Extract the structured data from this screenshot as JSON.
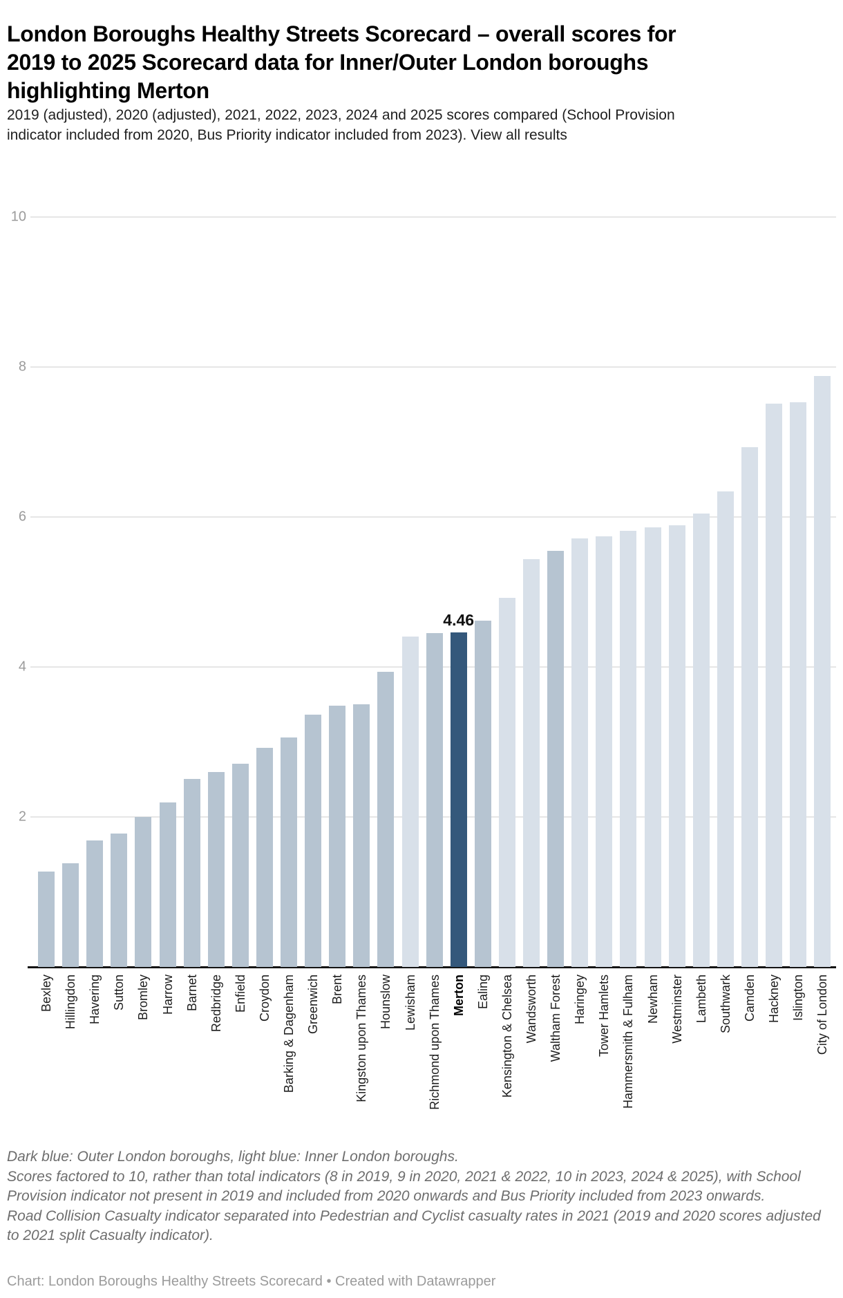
{
  "header": {
    "title": "London Boroughs Healthy Streets Scorecard – overall scores for 2019 to 2025 Scorecard data for Inner/Outer London boroughs highlighting Merton",
    "subtitle_text": "2019 (adjusted), 2020 (adjusted), 2021, 2022, 2023, 2024 and 2025 scores compared (School Provision indicator included from 2020, Bus Priority indicator included from 2023). ",
    "subtitle_link": "View all results"
  },
  "chart_data": {
    "type": "bar",
    "title": "London Boroughs Healthy Streets Scorecard – overall scores for 2019 to 2025 Scorecard data for Inner/Outer London boroughs highlighting Merton",
    "categories": [
      "Bexley",
      "Hillingdon",
      "Havering",
      "Sutton",
      "Bromley",
      "Harrow",
      "Barnet",
      "Redbridge",
      "Enfield",
      "Croydon",
      "Barking & Dagenham",
      "Greenwich",
      "Brent",
      "Kingston upon Thames",
      "Hounslow",
      "Lewisham",
      "Richmond upon Thames",
      "Merton",
      "Ealing",
      "Kensington & Chelsea",
      "Wandsworth",
      "Waltham Forest",
      "Haringey",
      "Tower Hamlets",
      "Hammersmith & Fulham",
      "Newham",
      "Westminster",
      "Lambeth",
      "Southwark",
      "Camden",
      "Hackney",
      "Islington",
      "City of London"
    ],
    "values": [
      1.27,
      1.38,
      1.69,
      1.78,
      2.0,
      2.19,
      2.51,
      2.6,
      2.71,
      2.92,
      3.06,
      3.36,
      3.48,
      3.5,
      3.94,
      4.41,
      4.45,
      4.46,
      4.62,
      4.92,
      5.44,
      5.55,
      5.71,
      5.74,
      5.82,
      5.86,
      5.89,
      6.05,
      6.34,
      6.93,
      7.51,
      7.53,
      7.88
    ],
    "groups": [
      "outer",
      "outer",
      "outer",
      "outer",
      "outer",
      "outer",
      "outer",
      "outer",
      "outer",
      "outer",
      "outer",
      "outer",
      "outer",
      "outer",
      "outer",
      "inner",
      "outer",
      "outer",
      "outer",
      "inner",
      "inner",
      "outer",
      "inner",
      "inner",
      "inner",
      "inner",
      "inner",
      "inner",
      "inner",
      "inner",
      "inner",
      "inner",
      "inner"
    ],
    "highlight": {
      "category": "Merton",
      "index": 17,
      "value_label": "4.46"
    },
    "xlabel": "",
    "ylabel": "",
    "ylim": [
      0,
      10
    ],
    "y_ticks": [
      10,
      8,
      6,
      4,
      2
    ],
    "grid": true,
    "legend_position": "none",
    "colors": {
      "outer": "#b6c4d1",
      "inner": "#d8e0e9",
      "highlight": "#34587b",
      "gridline": "#e6e6e6",
      "axis_line": "#141414",
      "tick_label": "#9b9b9b"
    }
  },
  "footnotes": [
    "Dark blue: Outer London boroughs, light blue: Inner London boroughs.",
    "Scores factored to 10, rather than total indicators (8 in 2019, 9 in 2020, 2021 & 2022, 10 in 2023, 2024 & 2025), with School Provision indicator not present in 2019 and included from 2020 onwards and Bus Priority included from 2023 onwards.",
    "Road Collision Casualty indicator separated into Pedestrian and Cyclist casualty rates in 2021 (2019 and 2020 scores adjusted to 2021 split Casualty indicator)."
  ],
  "credit": "Chart: London Boroughs Healthy Streets Scorecard • Created with Datawrapper"
}
